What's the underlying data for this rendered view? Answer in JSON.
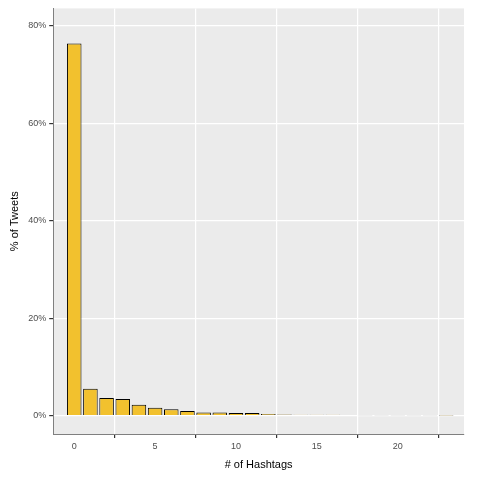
{
  "chart_data": {
    "type": "bar",
    "x_label": "# of Hashtags",
    "y_label": "% of Tweets",
    "x": [
      0,
      1,
      2,
      3,
      4,
      5,
      6,
      7,
      8,
      9,
      10,
      11,
      12,
      13,
      14,
      15,
      16,
      17,
      18,
      19,
      20,
      21,
      22,
      23
    ],
    "values": [
      76.4,
      5.5,
      3.6,
      3.4,
      2.2,
      1.6,
      1.3,
      0.9,
      0.6,
      0.6,
      0.5,
      0.5,
      0.3,
      0.2,
      0.15,
      0.15,
      0.15,
      0.1,
      0.05,
      0.05,
      0.05,
      0.03,
      0.03,
      0.02
    ],
    "color": "#f2c12e",
    "xlim": [
      -1.3,
      24.1
    ],
    "xticks": [
      0,
      5,
      10,
      15,
      20
    ],
    "ylim": [
      -3.8,
      83.6
    ],
    "yticks": [
      {
        "value": 0,
        "label": "0%"
      },
      {
        "value": 20,
        "label": "20%"
      },
      {
        "value": 40,
        "label": "40%"
      },
      {
        "value": 60,
        "label": "60%"
      },
      {
        "value": 80,
        "label": "80%"
      }
    ],
    "grid": true
  }
}
